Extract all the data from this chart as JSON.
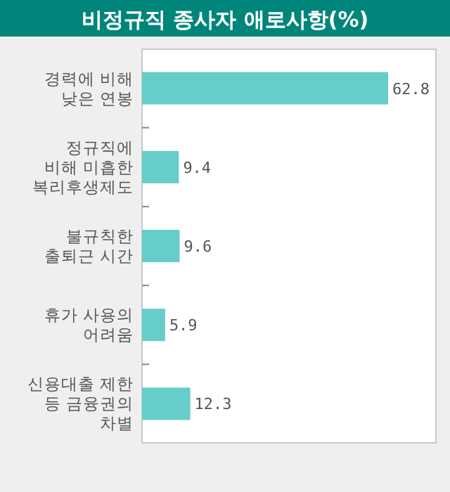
{
  "chart_data": {
    "type": "bar",
    "orientation": "horizontal",
    "title": "비정규직 종사자 애로사항(%)",
    "categories": [
      "경력에 비해\n낮은 연봉",
      "정규직에\n비해 미흡한\n복리후생제도",
      "불규칙한\n출퇴근 시간",
      "휴가 사용의\n어려움",
      "신용대출 제한\n등 금융권의\n차별"
    ],
    "values": [
      62.8,
      9.4,
      9.6,
      5.9,
      12.3
    ],
    "colors": [
      "#66cdc8",
      "#66cdc8",
      "#66cdc8",
      "#66cdc8",
      "#66cdc8"
    ],
    "data_labels": true
  }
}
